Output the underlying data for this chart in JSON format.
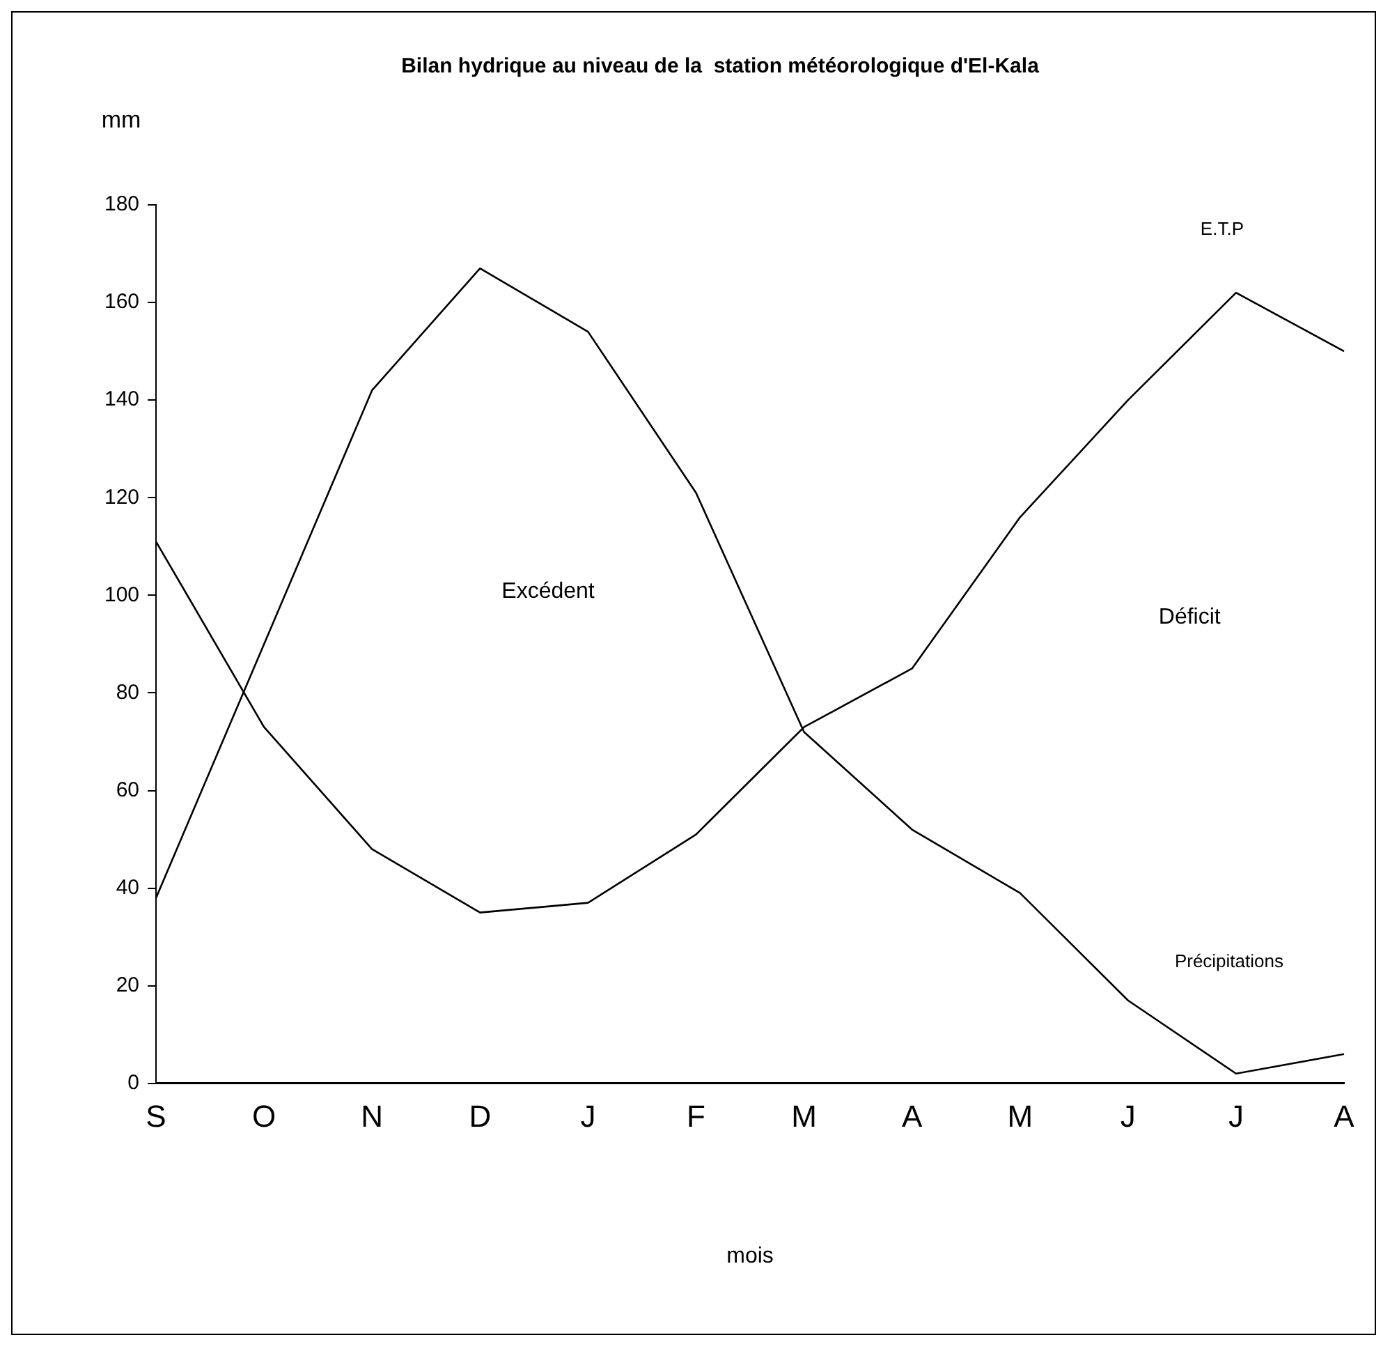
{
  "chart_data": {
    "type": "line",
    "title": "Bilan hydrique au niveau de la  station météorologique d'El-Kala",
    "xlabel": "mois",
    "ylabel": "mm",
    "categories": [
      "S",
      "O",
      "N",
      "D",
      "J",
      "F",
      "M",
      "A",
      "M",
      "J",
      "J",
      "A"
    ],
    "series": [
      {
        "name": "E.T.P",
        "color": "#000000",
        "values": [
          111,
          73,
          48,
          35,
          37,
          51,
          73,
          85,
          116,
          140,
          162,
          150
        ]
      },
      {
        "name": "Précipitations",
        "color": "#000000",
        "values": [
          38,
          90,
          142,
          167,
          154,
          121,
          72,
          52,
          39,
          17,
          2,
          6
        ]
      }
    ],
    "annotations": [
      "Excédent",
      "Déficit"
    ],
    "ylim": [
      0,
      180
    ],
    "yticks": [
      0,
      20,
      40,
      60,
      80,
      100,
      120,
      140,
      160,
      180
    ],
    "grid": false,
    "legend": false,
    "marker": "none",
    "line_style": "solid"
  }
}
